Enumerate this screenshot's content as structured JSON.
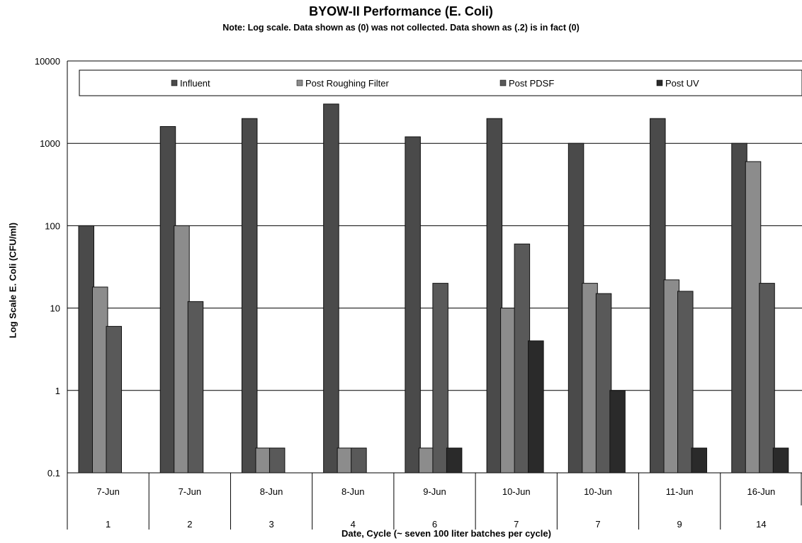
{
  "chart_data": {
    "type": "bar",
    "title": "BYOW-II Performance (E. Coli)",
    "subtitle": "Note: Log scale. Data shown as (0) was not collected. Data shown as (.2) is in fact (0)",
    "ylabel": "Log Scale E. Coli (CFU/ml)",
    "xlabel": "Date, Cycle (~ seven 100 liter batches per cycle)",
    "y_scale": "log",
    "ylim": [
      0.1,
      10000
    ],
    "y_ticks": [
      "0.1",
      "1",
      "10",
      "100",
      "1000",
      "10000"
    ],
    "y_tick_values": [
      0.1,
      1,
      10,
      100,
      1000,
      10000
    ],
    "grid": "horizontal",
    "legend_position": "top",
    "categories_date": [
      "7-Jun",
      "7-Jun",
      "8-Jun",
      "8-Jun",
      "9-Jun",
      "10-Jun",
      "10-Jun",
      "11-Jun",
      "16-Jun"
    ],
    "categories_cycle": [
      "1",
      "2",
      "3",
      "4",
      "6",
      "7",
      "7",
      "9",
      "14"
    ],
    "series": [
      {
        "name": "Influent",
        "color": "#4a4a4a",
        "values": [
          100,
          1600,
          2000,
          3000,
          1200,
          2000,
          1000,
          2000,
          1000
        ]
      },
      {
        "name": "Post Roughing Filter",
        "color": "#8c8c8c",
        "values": [
          18,
          100,
          0.2,
          0.2,
          0.2,
          10,
          20,
          22,
          600
        ]
      },
      {
        "name": "Post PDSF",
        "color": "#595959",
        "values": [
          6,
          12,
          0.2,
          0.2,
          20,
          60,
          15,
          16,
          20
        ]
      },
      {
        "name": "Post UV",
        "color": "#2a2a2a",
        "values": [
          0,
          0,
          0,
          0,
          0.2,
          4,
          1,
          0.2,
          0.2
        ]
      }
    ]
  }
}
